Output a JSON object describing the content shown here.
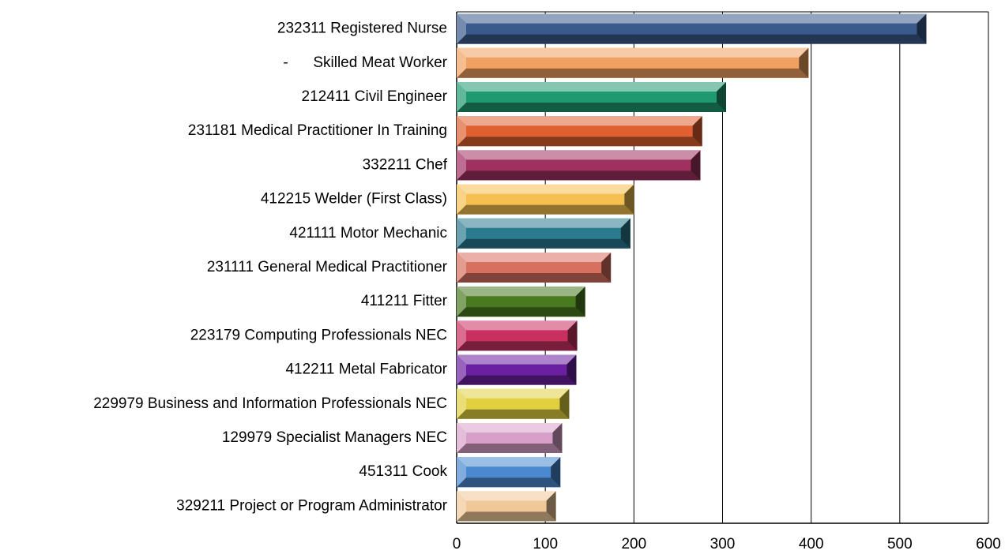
{
  "chart_data": {
    "type": "bar",
    "orientation": "horizontal",
    "categories": [
      "232311 Registered Nurse",
      "-      Skilled Meat Worker",
      "212411 Civil Engineer",
      "231181 Medical Practitioner In Training",
      "332211 Chef",
      "412215 Welder (First Class)",
      "421111 Motor Mechanic",
      "231111 General Medical Practitioner",
      "411211 Fitter",
      "223179 Computing Professionals NEC",
      "412211 Metal Fabricator",
      "229979 Business and Information Professionals NEC",
      "129979 Specialist Managers NEC",
      "451311 Cook",
      "329211 Project or Program Administrator"
    ],
    "values": [
      530,
      397,
      304,
      277,
      275,
      200,
      196,
      174,
      145,
      136,
      135,
      127,
      119,
      117,
      112
    ],
    "colors": [
      "#3a5a8c",
      "#f0a060",
      "#1f9a70",
      "#e06030",
      "#a03060",
      "#f5c050",
      "#2a7a90",
      "#d87060",
      "#4a7a20",
      "#c83060",
      "#6a20a0",
      "#e0d040",
      "#d8a0c8",
      "#4a88d0",
      "#f0c898"
    ],
    "xlim": [
      0,
      600
    ],
    "xticks": [
      0,
      100,
      200,
      300,
      400,
      500,
      600
    ],
    "grid": true
  }
}
